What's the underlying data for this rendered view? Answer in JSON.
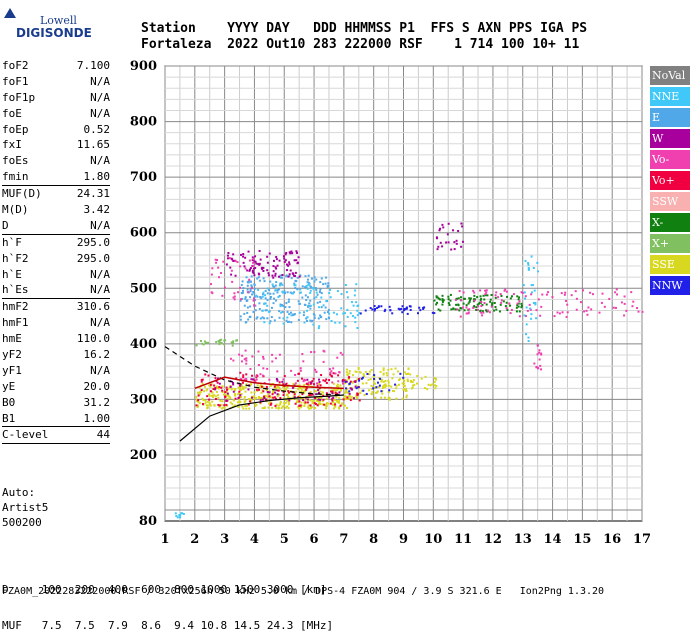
{
  "logo": {
    "line1": "Lowell",
    "line2": "DIGISONDE"
  },
  "header": {
    "row1": "Station    YYYY DAY   DDD HHMMSS P1  FFS S AXN PPS IGA PS",
    "row2": "Fortaleza  2022 Out10 283 222000 RSF    1 714 100 10+ 11"
  },
  "params": [
    {
      "k": "foF2",
      "v": "7.100"
    },
    {
      "k": "foF1",
      "v": "N/A"
    },
    {
      "k": "foF1p",
      "v": "N/A"
    },
    {
      "k": "foE",
      "v": "N/A"
    },
    {
      "k": "foEp",
      "v": "0.52"
    },
    {
      "k": "fxI",
      "v": "11.65"
    },
    {
      "k": "foEs",
      "v": "N/A"
    },
    {
      "k": "fmin",
      "v": "1.80"
    },
    {
      "sep": true
    },
    {
      "k": "MUF(D)",
      "v": "24.31"
    },
    {
      "k": "M(D)",
      "v": "3.42"
    },
    {
      "k": "D",
      "v": "N/A"
    },
    {
      "sep": true
    },
    {
      "k": "h`F",
      "v": "295.0"
    },
    {
      "k": "h`F2",
      "v": "295.0"
    },
    {
      "k": "h`E",
      "v": "N/A"
    },
    {
      "k": "h`Es",
      "v": "N/A"
    },
    {
      "sep": true
    },
    {
      "k": "hmF2",
      "v": "310.6"
    },
    {
      "k": "hmF1",
      "v": "N/A"
    },
    {
      "k": "hmE",
      "v": "110.0"
    },
    {
      "k": "yF2",
      "v": "16.2"
    },
    {
      "k": "yF1",
      "v": "N/A"
    },
    {
      "k": "yE",
      "v": "20.0"
    },
    {
      "k": "B0",
      "v": "31.2"
    },
    {
      "k": "B1",
      "v": "1.00"
    },
    {
      "sep": true
    },
    {
      "k": "C-level",
      "v": "44"
    },
    {
      "sep": true
    }
  ],
  "auto": {
    "line1": "Auto:",
    "line2": "Artist5",
    "line3": "500200"
  },
  "legend": [
    {
      "label": "NoVal",
      "color": "#808080"
    },
    {
      "label": "NNE",
      "color": "#40c8f8"
    },
    {
      "label": "E",
      "color": "#50a8e8"
    },
    {
      "label": "W",
      "color": "#a8009c"
    },
    {
      "label": "Vo-",
      "color": "#f040b0"
    },
    {
      "label": "Vo+",
      "color": "#f00040"
    },
    {
      "label": "SSW",
      "color": "#f8b0b0"
    },
    {
      "label": "X-",
      "color": "#108010"
    },
    {
      "label": "X+",
      "color": "#80c060"
    },
    {
      "label": "SSE",
      "color": "#d8d820"
    },
    {
      "label": "NNW",
      "color": "#2020e8"
    }
  ],
  "footer": {
    "row1": "D     100  200  400  600  800 1000 1500 3000 [km]",
    "row2": "MUF   7.5  7.5  7.9  8.6  9.4 10.8 14.5 24.3 [MHz]",
    "row3": "FZA0M_2022283222000.RSF / 320fx256h 50 kHz 5.0 km / DPS-4 FZA0M 904 / 3.9 S 321.6 E   Ion2Png 1.3.20"
  },
  "chart_data": {
    "type": "scatter",
    "title": "",
    "xlabel": "",
    "ylabel": "",
    "xlim": [
      1,
      17
    ],
    "ylim": [
      80,
      900
    ],
    "xticks": [
      "1",
      "2",
      "3",
      "4",
      "5",
      "6",
      "7",
      "8",
      "9",
      "10",
      "11",
      "12",
      "13",
      "14",
      "15",
      "16",
      "17"
    ],
    "yticks": [
      "80",
      "200",
      "300",
      "400",
      "500",
      "600",
      "700",
      "800",
      "900"
    ],
    "grid": "on",
    "legend_position": "right",
    "clusters": [
      {
        "series": "SSE",
        "x": [
          2.0,
          7.2
        ],
        "y": [
          285,
          330
        ],
        "n": 420
      },
      {
        "series": "SSE",
        "x": [
          7.0,
          9.2
        ],
        "y": [
          300,
          360
        ],
        "n": 140
      },
      {
        "series": "SSE",
        "x": [
          9.2,
          10.1
        ],
        "y": [
          320,
          345
        ],
        "n": 25
      },
      {
        "series": "Vo+",
        "x": [
          2.0,
          7.5
        ],
        "y": [
          290,
          350
        ],
        "n": 160
      },
      {
        "series": "Vo-",
        "x": [
          3.0,
          7.0
        ],
        "y": [
          330,
          390
        ],
        "n": 70
      },
      {
        "series": "W",
        "x": [
          2.5,
          7.5
        ],
        "y": [
          300,
          340
        ],
        "n": 60
      },
      {
        "series": "NNW",
        "x": [
          7.0,
          9.0
        ],
        "y": [
          310,
          350
        ],
        "n": 25
      },
      {
        "series": "X+",
        "x": [
          2.0,
          3.5
        ],
        "y": [
          398,
          410
        ],
        "n": 25
      },
      {
        "series": "E",
        "x": [
          3.5,
          6.5
        ],
        "y": [
          440,
          525
        ],
        "n": 220
      },
      {
        "series": "NNE",
        "x": [
          4.0,
          7.5
        ],
        "y": [
          430,
          510
        ],
        "n": 90
      },
      {
        "series": "W",
        "x": [
          3.0,
          5.5
        ],
        "y": [
          520,
          570
        ],
        "n": 100
      },
      {
        "series": "Vo-",
        "x": [
          2.5,
          4.0
        ],
        "y": [
          470,
          560
        ],
        "n": 40
      },
      {
        "series": "NNW",
        "x": [
          7.5,
          10.0
        ],
        "y": [
          455,
          470
        ],
        "n": 40
      },
      {
        "series": "X-",
        "x": [
          10.0,
          13.0
        ],
        "y": [
          460,
          490
        ],
        "n": 110
      },
      {
        "series": "Vo-",
        "x": [
          10.5,
          17.0
        ],
        "y": [
          450,
          500
        ],
        "n": 110
      },
      {
        "series": "NNE",
        "x": [
          13.0,
          13.5
        ],
        "y": [
          400,
          560
        ],
        "n": 30
      },
      {
        "series": "W",
        "x": [
          10.0,
          11.0
        ],
        "y": [
          570,
          620
        ],
        "n": 25
      },
      {
        "series": "Vo-",
        "x": [
          13.3,
          13.6
        ],
        "y": [
          350,
          400
        ],
        "n": 15
      },
      {
        "series": "NNE",
        "x": [
          1.3,
          1.6
        ],
        "y": [
          88,
          96
        ],
        "n": 10
      }
    ],
    "traces": [
      {
        "name": "profile",
        "style": "solid",
        "x": [
          1.5,
          2.5,
          3.5,
          4.5,
          5.5,
          6.5,
          7.0
        ],
        "y": [
          225,
          270,
          290,
          298,
          303,
          306,
          308
        ]
      },
      {
        "name": "extrapolation",
        "style": "dashed",
        "x": [
          1.0,
          2.0,
          3.0,
          4.0,
          5.0,
          6.0,
          7.0
        ],
        "y": [
          395,
          360,
          335,
          322,
          315,
          310,
          308
        ]
      },
      {
        "name": "trace",
        "style": "red",
        "x": [
          2.0,
          3.0,
          4.0,
          5.0,
          6.0,
          7.0
        ],
        "y": [
          320,
          340,
          330,
          325,
          322,
          320
        ]
      }
    ]
  }
}
